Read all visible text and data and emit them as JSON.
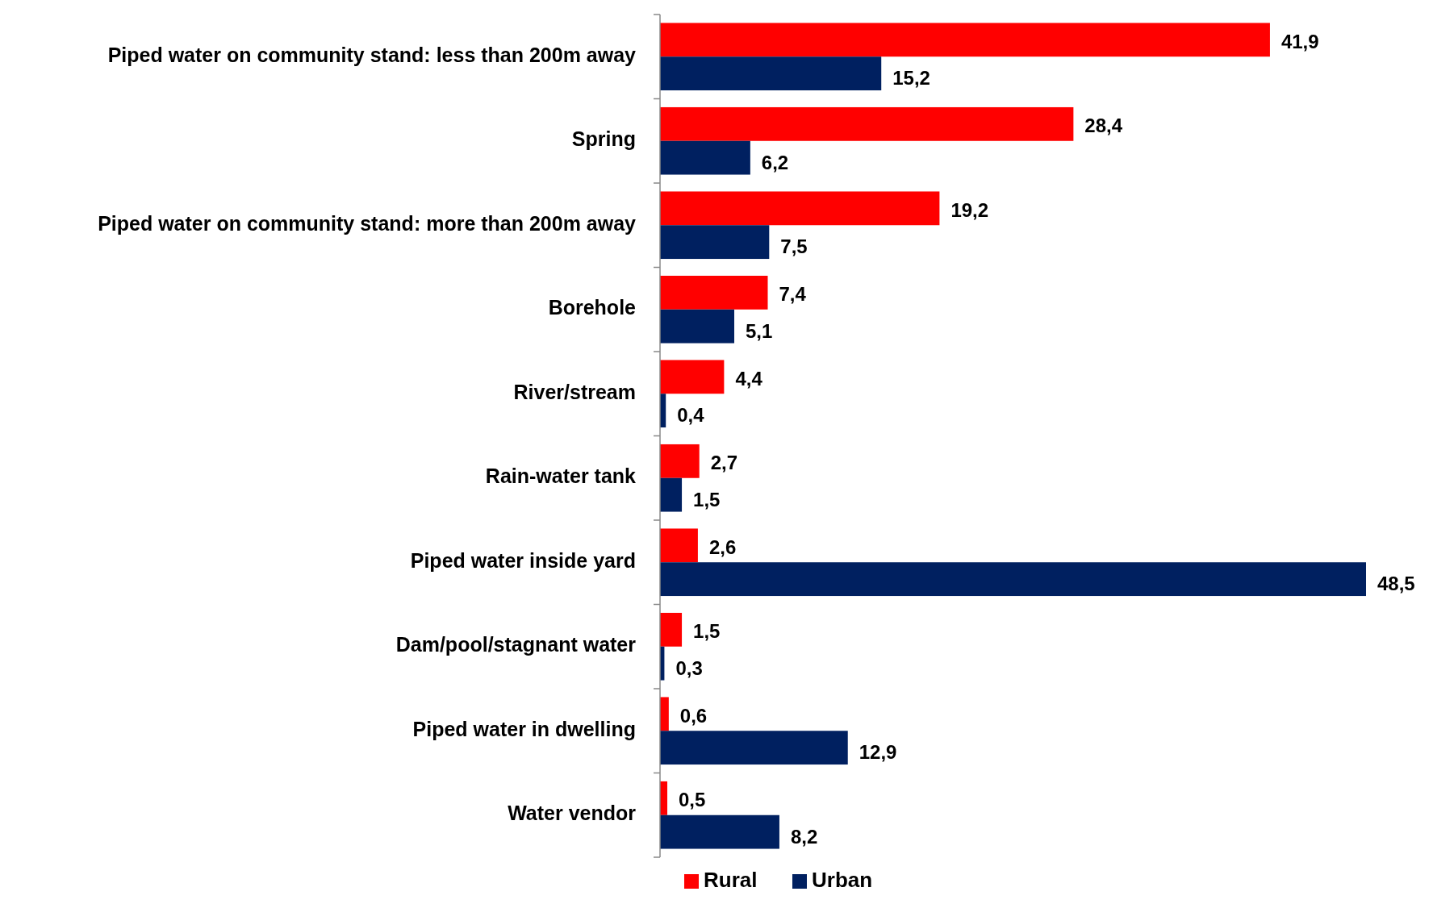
{
  "chart_data": {
    "type": "bar",
    "orientation": "horizontal",
    "categories": [
      "Piped water on community stand: less than 200m away",
      "Spring",
      "Piped water on community stand: more than 200m away",
      "Borehole",
      "River/stream",
      "Rain-water tank",
      "Piped water inside yard",
      "Dam/pool/stagnant water",
      "Piped water in dwelling",
      "Water vendor"
    ],
    "series": [
      {
        "name": "Rural",
        "color": "#ff0000",
        "values": [
          41.9,
          28.4,
          19.2,
          7.4,
          4.4,
          2.7,
          2.6,
          1.5,
          0.6,
          0.5
        ],
        "value_labels": [
          "41,9",
          "28,4",
          "19,2",
          "7,4",
          "4,4",
          "2,7",
          "2,6",
          "1,5",
          "0,6",
          "0,5"
        ]
      },
      {
        "name": "Urban",
        "color": "#002060",
        "values": [
          15.2,
          6.2,
          7.5,
          5.1,
          0.4,
          1.5,
          48.5,
          0.3,
          12.9,
          8.2
        ],
        "value_labels": [
          "15,2",
          "6,2",
          "7,5",
          "5,1",
          "0,4",
          "1,5",
          "48,5",
          "0,3",
          "12,9",
          "8,2"
        ]
      }
    ],
    "legend": "bottom",
    "grid": false
  }
}
